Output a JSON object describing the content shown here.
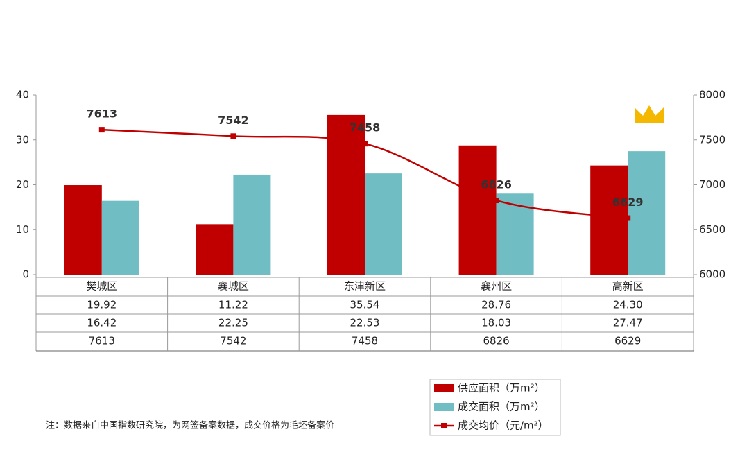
{
  "chart_data": {
    "type": "bar",
    "categories": [
      "樊城区",
      "襄城区",
      "东津新区",
      "襄州区",
      "高新区"
    ],
    "series": [
      {
        "name": "供应面积（万m²）",
        "color": "#c00000",
        "values": [
          19.92,
          11.22,
          35.54,
          28.76,
          24.3
        ],
        "value_labels": [
          "19.92",
          "11.22",
          "35.54",
          "28.76",
          "24.30"
        ]
      },
      {
        "name": "成交面积（万m²）",
        "color": "#70bec4",
        "values": [
          16.42,
          22.25,
          22.53,
          18.03,
          27.47
        ],
        "value_labels": [
          "16.42",
          "22.25",
          "22.53",
          "18.03",
          "27.47"
        ]
      },
      {
        "name": "成交均价（元/m²）",
        "color": "#c00000",
        "type": "line",
        "axis": "y2",
        "values": [
          7613,
          7542,
          7458,
          6826,
          6629
        ]
      }
    ],
    "ylim": [
      0,
      40
    ],
    "yticks": [
      0,
      10,
      20,
      30,
      40
    ],
    "y2lim": [
      6000,
      8000
    ],
    "y2ticks": [
      6000,
      6500,
      7000,
      7500,
      8000
    ],
    "note": "注：数据来自中国指数研究院，为网签备案数据，成交价格为毛坯备案价"
  }
}
